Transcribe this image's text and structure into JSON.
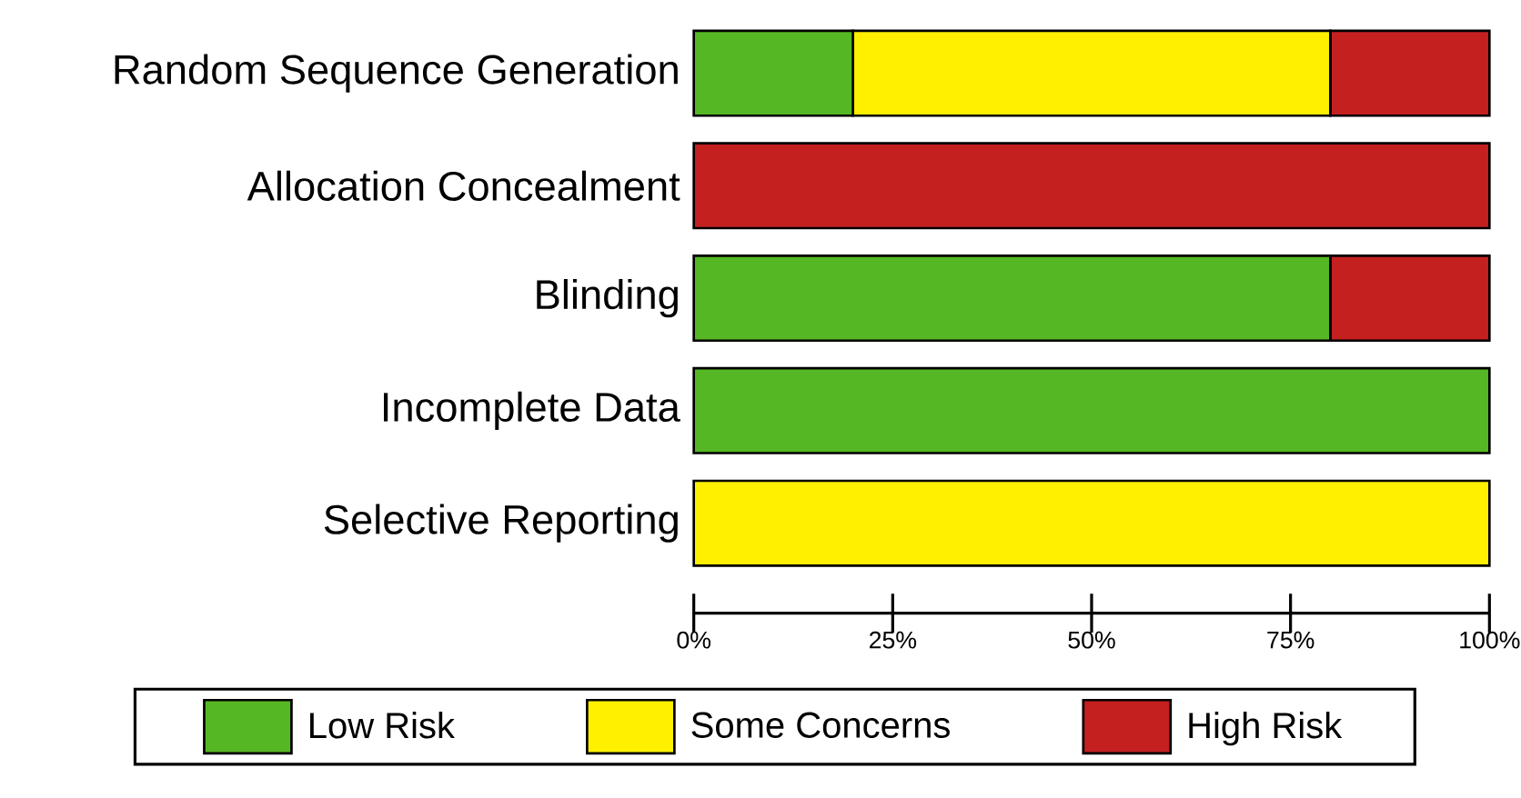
{
  "chart_data": {
    "type": "bar",
    "orientation": "horizontal",
    "stacked": true,
    "categories": [
      "Random Sequence Generation",
      "Allocation Concealment",
      "Blinding",
      "Incomplete Data",
      "Selective Reporting"
    ],
    "series": [
      {
        "name": "Low Risk",
        "color": "#55b723",
        "values": [
          20,
          0,
          80,
          100,
          0
        ]
      },
      {
        "name": "Some Concerns",
        "color": "#fff000",
        "values": [
          60,
          0,
          0,
          0,
          100
        ]
      },
      {
        "name": "High Risk",
        "color": "#c42020",
        "values": [
          20,
          100,
          20,
          0,
          0
        ]
      }
    ],
    "xlim": [
      0,
      100
    ],
    "xticks": [
      {
        "value": 0,
        "label": "0%"
      },
      {
        "value": 25,
        "label": "25%"
      },
      {
        "value": 50,
        "label": "50%"
      },
      {
        "value": 75,
        "label": "75%"
      },
      {
        "value": 100,
        "label": "100%"
      }
    ],
    "legend": "bottom",
    "grid": false
  }
}
